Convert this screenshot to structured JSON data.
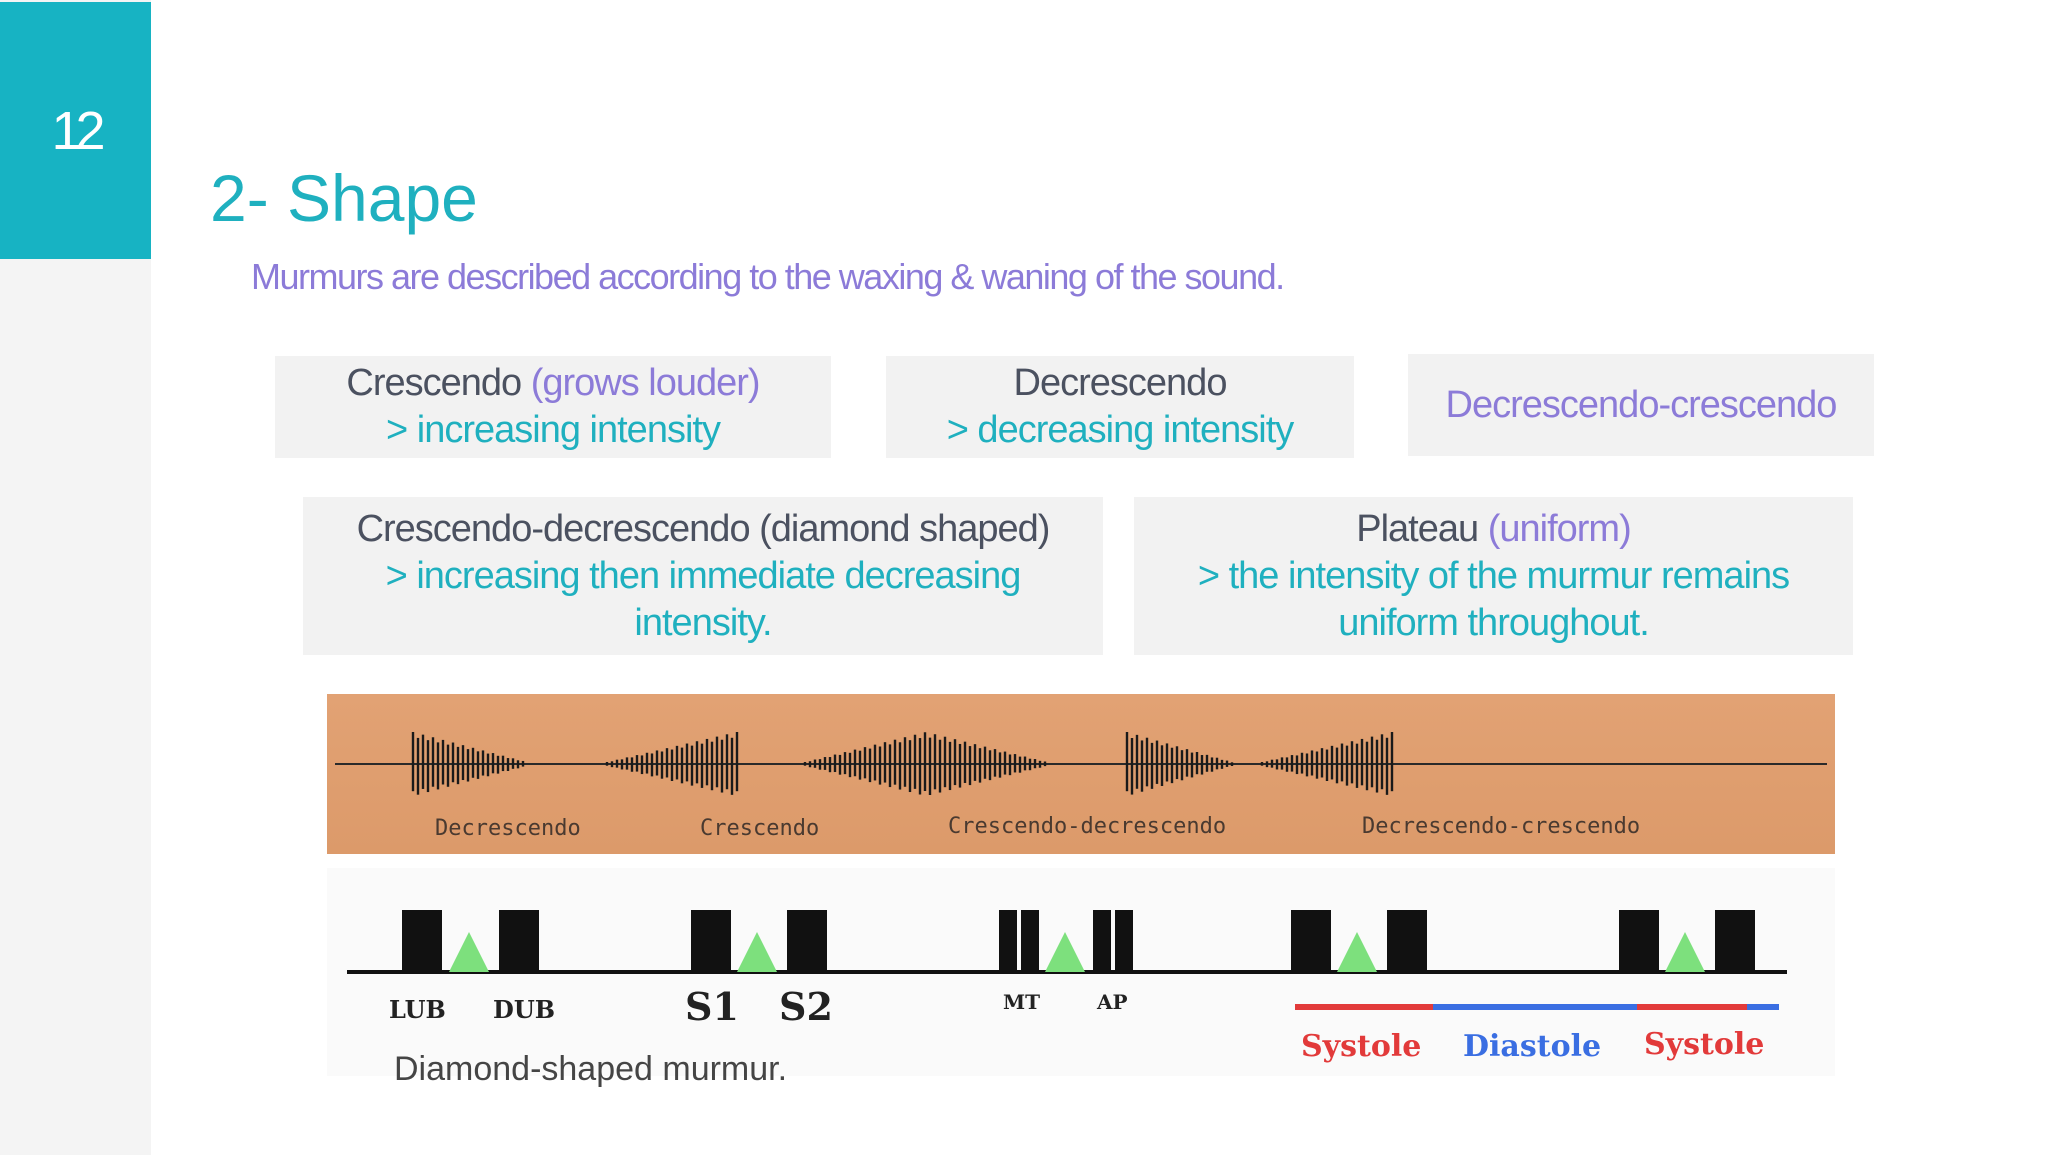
{
  "slide": {
    "number": "12",
    "title": "2- Shape",
    "subtitle": "Murmurs are described according to the waxing & waning of the sound."
  },
  "cards": {
    "crescendo": {
      "name": "Crescendo",
      "paren": "(grows louder)",
      "desc": "> increasing intensity"
    },
    "decrescendo": {
      "name": "Decrescendo",
      "desc": "> decreasing intensity"
    },
    "decrescendo_crescendo": {
      "name": "Decrescendo-crescendo"
    },
    "crescendo_decrescendo": {
      "name": "Crescendo-decrescendo (diamond shaped)",
      "desc_line1": "> increasing then immediate decreasing",
      "desc_line2": "intensity."
    },
    "plateau": {
      "name": "Plateau",
      "paren": "(uniform)",
      "desc_line1": "> the intensity of the murmur remains",
      "desc_line2": "uniform throughout."
    }
  },
  "figure_top": {
    "labels": [
      "Decrescendo",
      "Crescendo",
      "Crescendo-decrescendo",
      "Decrescendo-crescendo"
    ]
  },
  "figure_bottom": {
    "sound_labels": [
      "LUB",
      "DUB",
      "S1",
      "S2",
      "MT",
      "AP"
    ],
    "phase_labels": [
      "Systole",
      "Diastole",
      "Systole"
    ],
    "phase_colors": {
      "systole": "#e23a3a",
      "diastole": "#3a6ee2"
    }
  },
  "caption": "Diamond-shaped murmur."
}
